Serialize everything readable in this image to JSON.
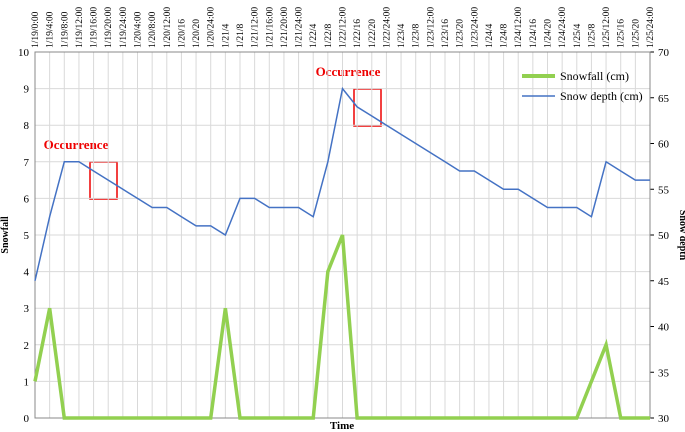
{
  "chart_data": {
    "type": "line",
    "categories": [
      "1/19/0:00",
      "1/19/4:00",
      "1/19/8:00",
      "1/19/12:00",
      "1/19/16:00",
      "1/19/20:00",
      "1/19/24:00",
      "1/20/4:00",
      "1/20/8:00",
      "1/20/12:00",
      "1/20/16",
      "1/20/20",
      "1/20/24:00",
      "1/21/4",
      "1/21/8",
      "1/21/12:00",
      "1/21/16:00",
      "1/21/20:00",
      "1/21/24:00",
      "1/22/4",
      "1/22/8",
      "1/22/12:00",
      "1/22/16",
      "1/22/20",
      "1/22/24:00",
      "1/23/4",
      "1/23/8",
      "1/23/12:00",
      "1/23/16",
      "1/23/20",
      "1/23/24:00",
      "1/24/4",
      "1/24/8",
      "1/24/12:00",
      "1/24/16",
      "1/24/20",
      "1/24/24:00",
      "1/25/4",
      "1/25/8",
      "1/25/12:00",
      "1/25/16",
      "1/25/20",
      "1/25/24:00"
    ],
    "series": [
      {
        "name": "Snowfall (cm)",
        "color": "#92d050",
        "values": [
          1,
          3,
          0,
          0,
          0,
          0,
          0,
          0,
          0,
          0,
          0,
          0,
          0,
          3,
          0,
          0,
          0,
          0,
          0,
          0,
          4,
          5,
          0,
          0,
          0,
          0,
          0,
          0,
          0,
          0,
          0,
          0,
          0,
          0,
          0,
          0,
          0,
          0,
          1,
          2,
          0,
          0,
          0
        ]
      },
      {
        "name": "Snow depth (cm)",
        "color": "#4472c4",
        "axis": "y2",
        "values": [
          45,
          52,
          58,
          58,
          57,
          56,
          55,
          54,
          53,
          53,
          52,
          51,
          51,
          50,
          54,
          54,
          53,
          53,
          53,
          52,
          58,
          66,
          64,
          63,
          62,
          61,
          60,
          59,
          58,
          57,
          57,
          56,
          55,
          55,
          54,
          53,
          53,
          53,
          52,
          58,
          57,
          56,
          56
        ]
      }
    ],
    "ylim": [
      0,
      10
    ],
    "yticks": [
      0,
      1,
      2,
      3,
      4,
      5,
      6,
      7,
      8,
      9,
      10
    ],
    "y2lim": [
      30,
      70
    ],
    "y2ticks": [
      30,
      35,
      40,
      45,
      50,
      55,
      60,
      65,
      70
    ],
    "ylabel": "Snowfall",
    "y2label": "Snow depth",
    "xlabel": "Time",
    "annotations": [
      "Occurrence",
      "Occurrence"
    ],
    "grid": true,
    "legend": "upper right"
  }
}
